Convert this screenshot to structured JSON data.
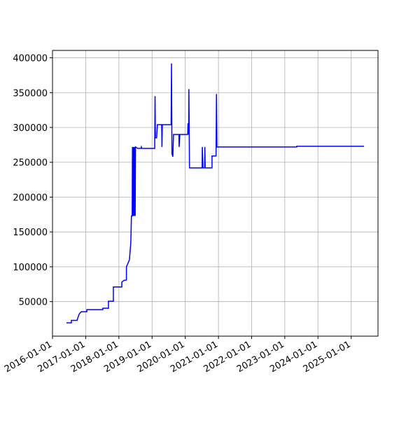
{
  "chart_data": {
    "type": "line",
    "x": [
      "2016-06-03",
      "2016-07-27",
      "2016-07-27",
      "2016-09-27",
      "2016-10-20",
      "2016-11-12",
      "2017-01-13",
      "2017-01-13",
      "2017-07-08",
      "2017-07-08",
      "2017-09-08",
      "2017-09-08",
      "2017-11-01",
      "2017-11-01",
      "2018-02-02",
      "2018-02-02",
      "2018-02-25",
      "2018-03-25",
      "2018-03-25",
      "2018-04-27",
      "2018-05-12",
      "2018-05-19",
      "2018-05-27",
      "2018-05-30",
      "2018-06-02",
      "2018-06-05",
      "2018-06-10",
      "2018-06-14",
      "2018-06-20",
      "2018-06-24",
      "2018-06-29",
      "2018-07-03",
      "2018-07-28",
      "2018-09-01",
      "2018-09-05",
      "2018-09-10",
      "2019-01-30",
      "2019-02-03",
      "2019-02-07",
      "2019-02-20",
      "2019-03-01",
      "2019-04-17",
      "2019-04-20",
      "2019-04-24",
      "2019-07-30",
      "2019-08-01",
      "2019-08-03",
      "2019-08-08",
      "2019-08-18",
      "2019-08-25",
      "2019-10-24",
      "2019-10-26",
      "2019-11-03",
      "2020-01-28",
      "2020-02-01",
      "2020-02-08",
      "2020-02-10",
      "2020-02-17",
      "2020-07-05",
      "2020-07-07",
      "2020-07-15",
      "2020-08-02",
      "2020-08-04",
      "2020-08-08",
      "2020-10-22",
      "2020-10-22",
      "2020-12-05",
      "2020-12-08",
      "2020-12-10",
      "2020-12-15",
      "2023-05-12",
      "2023-05-12",
      "2025-05-22"
    ],
    "series": [
      {
        "color": "#0000ff",
        "values": [
          19500,
          19500,
          23000,
          23000,
          32000,
          35500,
          35500,
          38500,
          38500,
          40500,
          40500,
          50500,
          50500,
          71000,
          71000,
          78000,
          80500,
          81000,
          100000,
          110000,
          135000,
          173000,
          173000,
          272000,
          173000,
          272000,
          173000,
          272000,
          173000,
          272000,
          173000,
          272000,
          270000,
          270000,
          272000,
          270000,
          270000,
          345000,
          285000,
          285000,
          304000,
          304000,
          272000,
          304000,
          304000,
          352000,
          392000,
          262000,
          258000,
          290000,
          290000,
          272000,
          290000,
          290000,
          306000,
          290000,
          355000,
          242000,
          242000,
          272000,
          242000,
          242000,
          272000,
          242000,
          242000,
          259000,
          259000,
          305000,
          348000,
          272000,
          272000,
          273000,
          273000
        ]
      }
    ],
    "xlim": [
      "2016-01-01",
      "2025-10-23"
    ],
    "ylim": [
      400,
      410600
    ],
    "xticks": [
      "2016-01-01",
      "2017-01-01",
      "2018-01-01",
      "2019-01-01",
      "2020-01-01",
      "2021-01-01",
      "2022-01-01",
      "2023-01-01",
      "2024-01-01",
      "2025-01-01"
    ],
    "yticks": [
      50000,
      100000,
      150000,
      200000,
      250000,
      300000,
      350000,
      400000
    ],
    "grid": true
  }
}
